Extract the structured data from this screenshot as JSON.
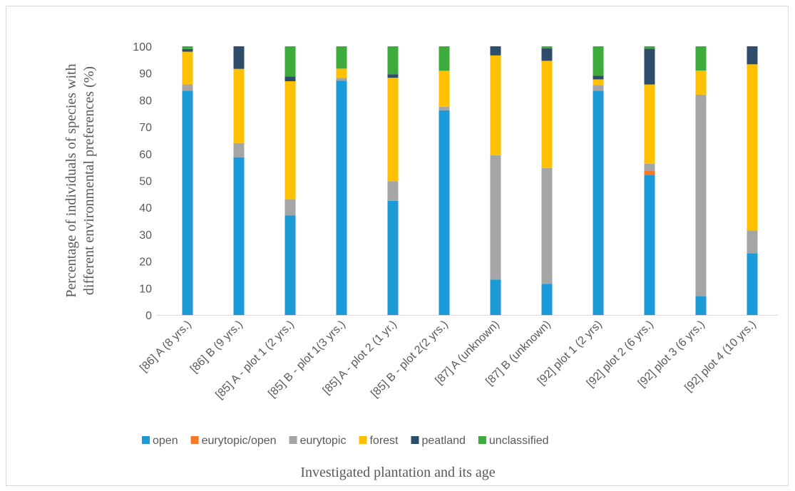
{
  "chart_data": {
    "type": "bar",
    "stacked": true,
    "title": "",
    "xlabel": "Investigated plantation and its age",
    "ylabel_line1": "Percentage of individuals of species with",
    "ylabel_line2": "different environmental preferences (%)",
    "ylim": [
      0,
      100
    ],
    "yticks": [
      0,
      10,
      20,
      30,
      40,
      50,
      60,
      70,
      80,
      90,
      100
    ],
    "grid": false,
    "legend_position": "bottom",
    "categories": [
      "[86] A (8 yrs.)",
      "[86] B (9 yrs.)",
      "[85] A - plot 1 (2 yrs.)",
      "[85] B - plot 1(3 yrs.)",
      "[85] A - plot 2 (1 yr.)",
      "[85] B - plot 2(2 yrs.)",
      "[87] A (unknown)",
      "[87] B (unknown)",
      "[92] plot 1 (2 yrs)",
      "[92] plot 2 (6 yrs.)",
      "[92] plot 3 (6 yrs.)",
      "[92] plot 4 (10 yrs.)"
    ],
    "series": [
      {
        "name": "open",
        "color": "#1b9ad8",
        "values": [
          83.5,
          58.7,
          37.0,
          87.2,
          42.5,
          76.2,
          13.2,
          11.6,
          83.5,
          52.2,
          7.0,
          23.0
        ]
      },
      {
        "name": "eurytopic/open",
        "color": "#f47a2a",
        "values": [
          0,
          0,
          0,
          0,
          0,
          0,
          0,
          0,
          0,
          1.5,
          0,
          0
        ]
      },
      {
        "name": "eurytopic",
        "color": "#a5a5a5",
        "values": [
          2.3,
          5.3,
          6.0,
          1.0,
          7.3,
          1.3,
          46.3,
          43.1,
          2.1,
          2.6,
          75.0,
          8.5
        ]
      },
      {
        "name": "forest",
        "color": "#ffc000",
        "values": [
          12.2,
          27.6,
          44.0,
          3.5,
          38.5,
          13.4,
          37.1,
          39.9,
          2.1,
          29.5,
          9.0,
          61.8
        ]
      },
      {
        "name": "peatland",
        "color": "#2e4d6b",
        "values": [
          1.0,
          8.4,
          1.8,
          0,
          1.3,
          0,
          3.4,
          4.6,
          1.3,
          13.3,
          0,
          6.7
        ]
      },
      {
        "name": "unclassified",
        "color": "#3cab3c",
        "values": [
          1.0,
          0,
          11.2,
          8.3,
          10.4,
          9.1,
          0,
          0.8,
          11.0,
          0.9,
          9.0,
          0
        ]
      }
    ]
  }
}
